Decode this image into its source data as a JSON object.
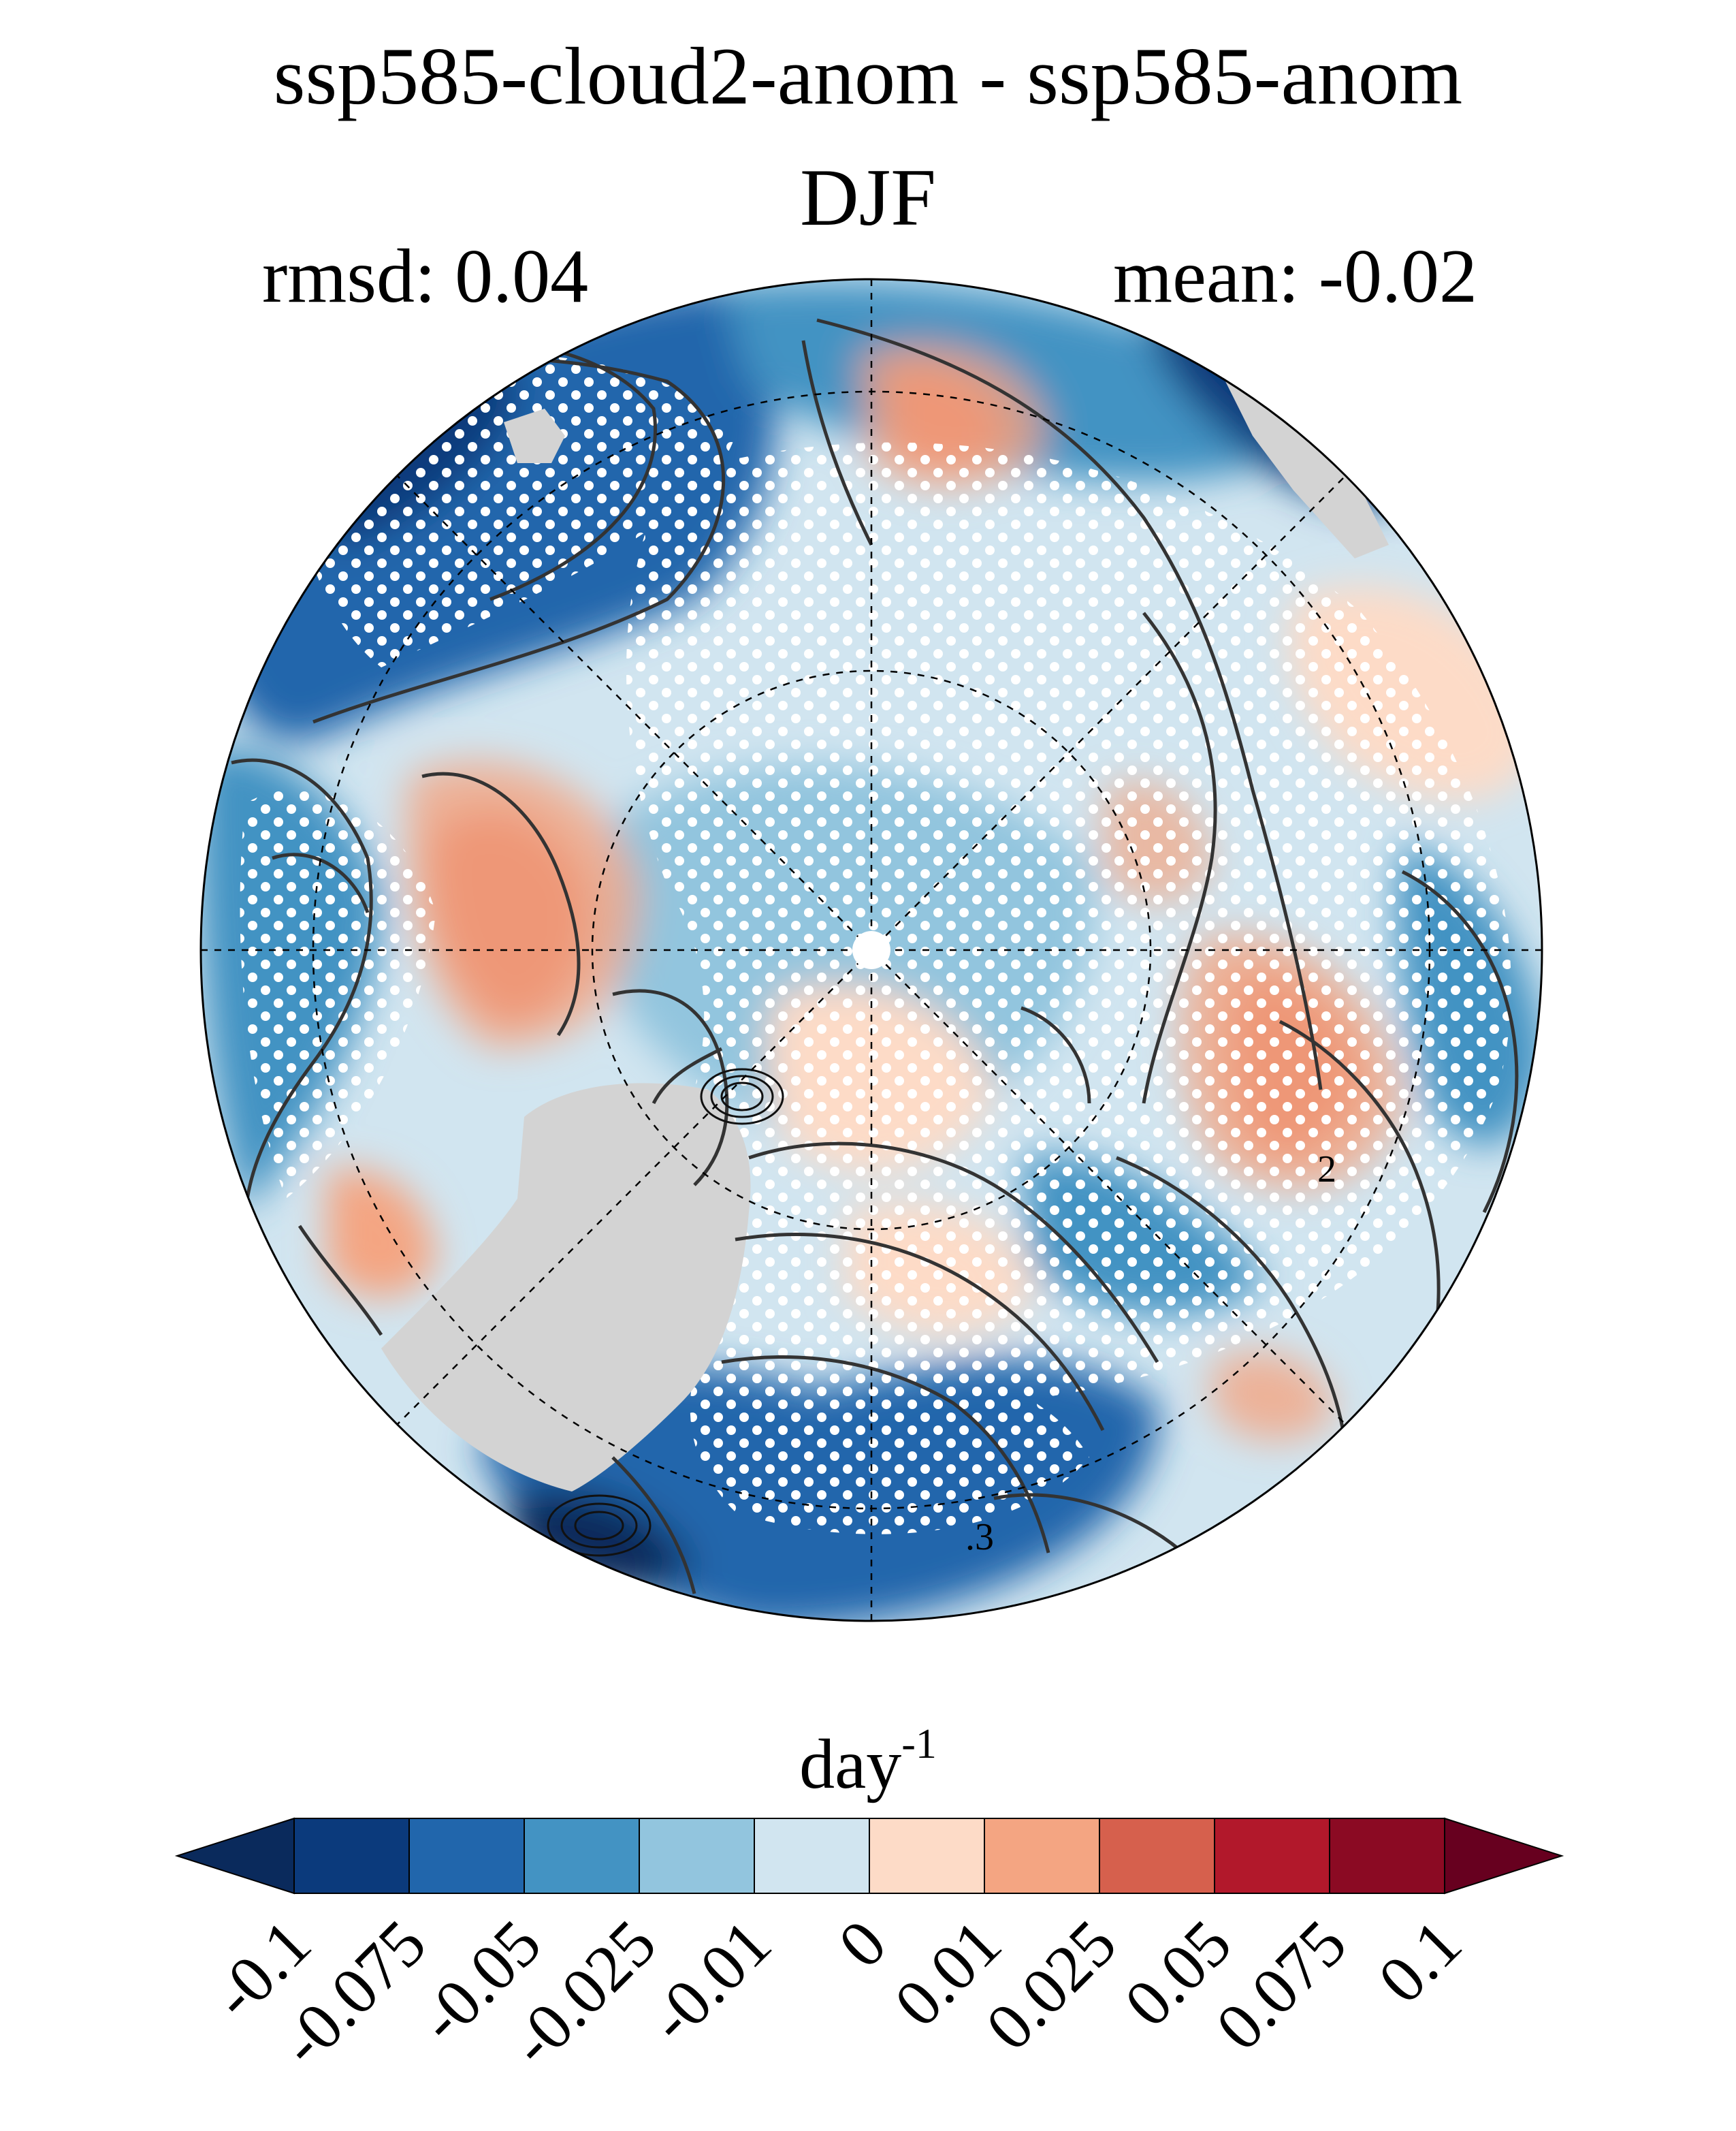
{
  "figure": {
    "title": "ssp585-cloud2-anom - ssp585-anom",
    "season": "DJF",
    "rmsd_label": "rmsd: 0.04",
    "mean_label": "mean: -0.02",
    "contour_labels": [
      "2",
      ".3"
    ]
  },
  "colorbar": {
    "unit_base": "day",
    "unit_exponent": "-1",
    "ticks": [
      "-0.1",
      "-0.075",
      "-0.05",
      "-0.025",
      "-0.01",
      "0",
      "0.01",
      "0.025",
      "0.05",
      "0.075",
      "0.1"
    ],
    "levels": [
      -0.1,
      -0.075,
      -0.05,
      -0.025,
      -0.01,
      0,
      0.01,
      0.025,
      0.05,
      0.075,
      0.1
    ],
    "colors": [
      "#0a2a5c",
      "#0b3a7c",
      "#2166ac",
      "#4393c3",
      "#92c5de",
      "#d1e5f0",
      "#fddbc7",
      "#f4a582",
      "#d6604d",
      "#b2182b",
      "#8b0a23",
      "#67001f"
    ],
    "extend": "both"
  },
  "map": {
    "projection": "north-polar-stereographic",
    "land_mask_color": "#d3d3d3",
    "stippling_color": "#ffffff",
    "contour_color": "#333333"
  }
}
